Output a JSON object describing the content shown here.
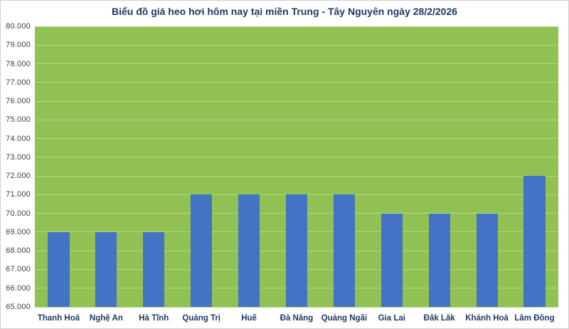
{
  "chart_data": {
    "type": "bar",
    "title": "Biểu đồ giá heo hơi hôm nay tại miền Trung - Tây Nguyên ngày 28/2/2026",
    "categories": [
      "Thanh Hoá",
      "Nghệ An",
      "Hà Tĩnh",
      "Quảng Trị",
      "Huế",
      "Đà Nẵng",
      "Quảng Ngãi",
      "Gia Lai",
      "Đắk Lắk",
      "Khánh Hoà",
      "Lâm Đồng"
    ],
    "values": [
      69000,
      69000,
      69000,
      71000,
      71000,
      71000,
      71000,
      70000,
      70000,
      70000,
      72000
    ],
    "xlabel": "",
    "ylabel": "",
    "ylim": [
      65000,
      80000
    ],
    "ytick_step": 1000,
    "ytick_labels": [
      "65.000",
      "66.000",
      "67.000",
      "68.000",
      "69.000",
      "70.000",
      "71.000",
      "72.000",
      "73.000",
      "74.000",
      "75.000",
      "76.000",
      "77.000",
      "78.000",
      "79.000",
      "80.000"
    ],
    "grid": true,
    "legend_position": "none",
    "colors": {
      "bar": "#4472C4",
      "plot_bg": "#90C152",
      "gridline": "#B9DA90",
      "title": "#1F3864",
      "x_axis_label": "#1F3864",
      "y_axis_label": "#404040",
      "frame_border": "#CFCFCF",
      "background": "#FFFFFF"
    }
  }
}
